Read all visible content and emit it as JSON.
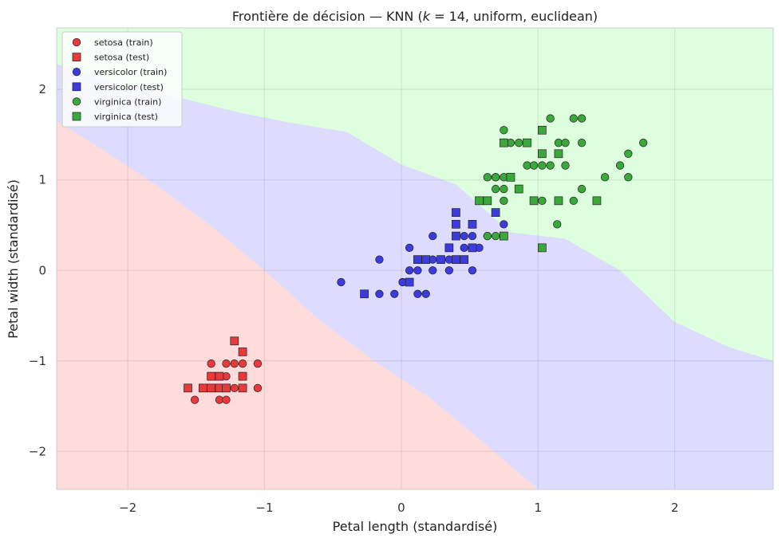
{
  "chart_data": {
    "type": "scatter",
    "title": "Frontière de décision — KNN (k = 14, uniform, euclidean)",
    "title_parts": {
      "prefix": "Frontière de décision — KNN (",
      "k_symbol": "k",
      "k_value": " = 14",
      "suffix": ", uniform, euclidean)"
    },
    "xlabel": "Petal length (standardisé)",
    "ylabel": "Petal width (standardisé)",
    "xlim": [
      -2.52,
      2.72
    ],
    "ylim": [
      -2.42,
      2.68
    ],
    "xticks": [
      -2,
      -1,
      0,
      1,
      2
    ],
    "yticks": [
      -2,
      -1,
      0,
      1,
      2
    ],
    "tick_labels_x": [
      "−2",
      "−1",
      "0",
      "1",
      "2"
    ],
    "tick_labels_y": [
      "−2",
      "−1",
      "0",
      "1",
      "2"
    ],
    "grid": true,
    "legend_position": "top-left",
    "class_colors": {
      "setosa": "#e8393d",
      "versicolor": "#3b3be0",
      "virginica": "#3aa83a"
    },
    "region_colors": {
      "setosa": "#ffdcdc",
      "versicolor": "#dddcff",
      "virginica": "#ddffdd"
    },
    "decision_boundaries": {
      "setosa_versicolor": {
        "x": [
          -2.52,
          -2.2,
          -1.8,
          -1.4,
          -1.0,
          -0.6,
          -0.2,
          0.2,
          0.6,
          1.0
        ],
        "y": [
          1.65,
          1.35,
          0.95,
          0.5,
          0.0,
          -0.55,
          -1.0,
          -1.4,
          -1.9,
          -2.42
        ]
      },
      "versicolor_virginica": {
        "x": [
          -2.52,
          -2.1,
          -1.6,
          -1.2,
          -0.8,
          -0.4,
          0.0,
          0.4,
          0.8,
          1.2,
          1.6,
          2.0,
          2.4,
          2.72
        ],
        "y": [
          2.28,
          2.08,
          1.9,
          1.75,
          1.63,
          1.53,
          1.17,
          0.95,
          0.42,
          0.35,
          0.0,
          -0.57,
          -0.85,
          -1.0
        ]
      }
    },
    "series": [
      {
        "name": "setosa (train)",
        "class": "setosa",
        "marker": "circle",
        "points": [
          [
            -1.05,
            -1.03
          ],
          [
            -1.16,
            -1.03
          ],
          [
            -1.22,
            -1.03
          ],
          [
            -1.28,
            -1.03
          ],
          [
            -1.39,
            -1.03
          ],
          [
            -1.39,
            -1.17
          ],
          [
            -1.33,
            -1.17
          ],
          [
            -1.28,
            -1.17
          ],
          [
            -1.05,
            -1.3
          ],
          [
            -1.16,
            -1.3
          ],
          [
            -1.22,
            -1.3
          ],
          [
            -1.28,
            -1.3
          ],
          [
            -1.33,
            -1.3
          ],
          [
            -1.39,
            -1.3
          ],
          [
            -1.45,
            -1.3
          ],
          [
            -1.51,
            -1.43
          ],
          [
            -1.33,
            -1.43
          ],
          [
            -1.28,
            -1.43
          ]
        ]
      },
      {
        "name": "setosa (test)",
        "class": "setosa",
        "marker": "square",
        "points": [
          [
            -1.22,
            -0.78
          ],
          [
            -1.16,
            -0.9
          ],
          [
            -1.39,
            -1.17
          ],
          [
            -1.33,
            -1.17
          ],
          [
            -1.16,
            -1.17
          ],
          [
            -1.56,
            -1.3
          ],
          [
            -1.45,
            -1.3
          ],
          [
            -1.39,
            -1.3
          ],
          [
            -1.33,
            -1.3
          ],
          [
            -1.28,
            -1.3
          ],
          [
            -1.16,
            -1.3
          ]
        ]
      },
      {
        "name": "versicolor (train)",
        "class": "versicolor",
        "marker": "circle",
        "points": [
          [
            -0.44,
            -0.13
          ],
          [
            -0.16,
            0.12
          ],
          [
            -0.16,
            -0.26
          ],
          [
            -0.05,
            -0.26
          ],
          [
            0.01,
            -0.13
          ],
          [
            0.06,
            -0.13
          ],
          [
            0.06,
            0.0
          ],
          [
            0.06,
            0.25
          ],
          [
            0.12,
            0.0
          ],
          [
            0.12,
            -0.26
          ],
          [
            0.18,
            -0.26
          ],
          [
            0.18,
            0.12
          ],
          [
            0.23,
            0.12
          ],
          [
            0.23,
            0.0
          ],
          [
            0.23,
            0.38
          ],
          [
            0.29,
            0.12
          ],
          [
            0.35,
            0.0
          ],
          [
            0.35,
            0.12
          ],
          [
            0.4,
            0.38
          ],
          [
            0.46,
            0.38
          ],
          [
            0.46,
            0.25
          ],
          [
            0.52,
            0.25
          ],
          [
            0.52,
            0.0
          ],
          [
            0.52,
            0.38
          ],
          [
            0.57,
            0.25
          ],
          [
            0.63,
            0.38
          ],
          [
            0.75,
            0.51
          ],
          [
            0.01,
            -0.13
          ],
          [
            0.29,
            0.12
          ],
          [
            0.4,
            0.12
          ]
        ]
      },
      {
        "name": "versicolor (test)",
        "class": "versicolor",
        "marker": "square",
        "points": [
          [
            -0.27,
            -0.26
          ],
          [
            0.06,
            -0.13
          ],
          [
            0.12,
            0.12
          ],
          [
            0.18,
            0.12
          ],
          [
            0.29,
            0.12
          ],
          [
            0.35,
            0.25
          ],
          [
            0.4,
            0.12
          ],
          [
            0.4,
            0.38
          ],
          [
            0.4,
            0.51
          ],
          [
            0.4,
            0.64
          ],
          [
            0.46,
            0.12
          ],
          [
            0.52,
            0.25
          ],
          [
            0.52,
            0.51
          ],
          [
            0.69,
            0.64
          ]
        ]
      },
      {
        "name": "virginica (train)",
        "class": "virginica",
        "marker": "circle",
        "points": [
          [
            0.63,
            0.38
          ],
          [
            0.69,
            0.38
          ],
          [
            0.69,
            0.9
          ],
          [
            0.69,
            1.03
          ],
          [
            0.63,
            1.03
          ],
          [
            0.75,
            1.03
          ],
          [
            0.75,
            0.9
          ],
          [
            0.75,
            0.77
          ],
          [
            0.75,
            1.41
          ],
          [
            0.75,
            1.55
          ],
          [
            0.8,
            1.41
          ],
          [
            0.86,
            1.41
          ],
          [
            0.92,
            1.41
          ],
          [
            0.92,
            1.16
          ],
          [
            0.97,
            1.16
          ],
          [
            1.03,
            1.16
          ],
          [
            1.03,
            0.77
          ],
          [
            1.09,
            1.16
          ],
          [
            1.09,
            1.68
          ],
          [
            1.15,
            1.41
          ],
          [
            1.2,
            1.41
          ],
          [
            1.2,
            1.16
          ],
          [
            1.26,
            1.68
          ],
          [
            1.26,
            0.77
          ],
          [
            1.32,
            1.68
          ],
          [
            1.32,
            1.41
          ],
          [
            1.32,
            0.9
          ],
          [
            1.14,
            0.51
          ],
          [
            1.49,
            1.03
          ],
          [
            1.6,
            1.16
          ],
          [
            1.66,
            1.29
          ],
          [
            1.66,
            1.03
          ],
          [
            1.77,
            1.41
          ],
          [
            0.69,
            1.03
          ]
        ]
      },
      {
        "name": "virginica (test)",
        "class": "virginica",
        "marker": "square",
        "points": [
          [
            0.57,
            0.77
          ],
          [
            0.63,
            0.77
          ],
          [
            0.75,
            0.38
          ],
          [
            0.75,
            1.41
          ],
          [
            0.8,
            1.03
          ],
          [
            0.86,
            0.9
          ],
          [
            0.92,
            1.41
          ],
          [
            0.97,
            0.77
          ],
          [
            1.03,
            1.55
          ],
          [
            1.03,
            1.29
          ],
          [
            1.03,
            0.25
          ],
          [
            1.15,
            1.29
          ],
          [
            1.15,
            0.77
          ],
          [
            1.43,
            0.77
          ]
        ]
      }
    ]
  }
}
